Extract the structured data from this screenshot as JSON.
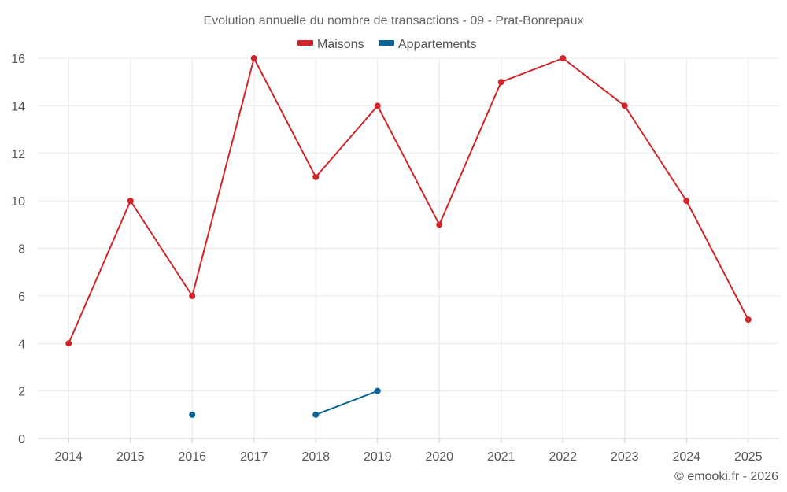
{
  "chart_data": {
    "type": "line",
    "title": "Evolution annuelle du nombre de transactions - 09 - Prat-Bonrepaux",
    "categories": [
      "2014",
      "2015",
      "2016",
      "2017",
      "2018",
      "2019",
      "2020",
      "2021",
      "2022",
      "2023",
      "2024",
      "2025"
    ],
    "series": [
      {
        "name": "Maisons",
        "color": "#d0252a",
        "values": [
          4,
          10,
          6,
          16,
          11,
          14,
          9,
          15,
          16,
          14,
          10,
          5
        ]
      },
      {
        "name": "Appartements",
        "color": "#0a6496",
        "values": [
          null,
          null,
          1,
          null,
          1,
          2,
          null,
          null,
          null,
          null,
          null,
          null
        ]
      }
    ],
    "ylim": [
      0,
      16
    ],
    "yticks": [
      0,
      2,
      4,
      6,
      8,
      10,
      12,
      14,
      16
    ],
    "grid": true,
    "legend": "top-center",
    "xlabel": "",
    "ylabel": ""
  },
  "credit": "© emooki.fr - 2026"
}
